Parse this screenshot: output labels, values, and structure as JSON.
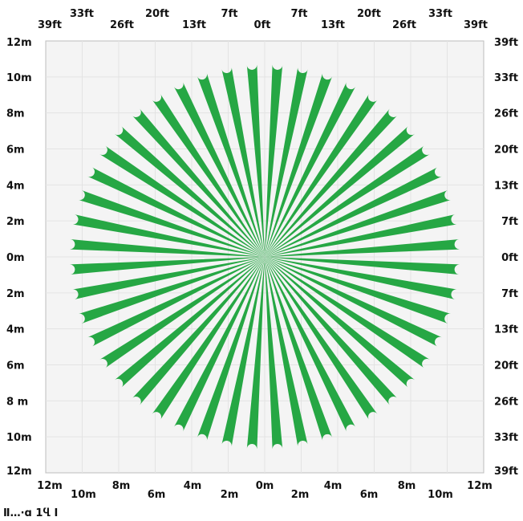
{
  "colors": {
    "ray": "#26a744",
    "plot_bg": "#f4f4f4",
    "grid": "#e3e3e3",
    "frame": "#bdbdbd",
    "text": "#111111"
  },
  "plot": {
    "ray_count": 48,
    "ray_radius_m": 10.7,
    "axis_range_m": [
      -12,
      12
    ]
  },
  "labels": {
    "top_feet": [
      "39ft",
      "33ft",
      "26ft",
      "20ft",
      "13ft",
      "7ft",
      "0ft",
      "7ft",
      "13ft",
      "20ft",
      "26ft",
      "33ft",
      "39ft"
    ],
    "bottom_meters": [
      "12m",
      "10m",
      "8m",
      "6m",
      "4m",
      "2m",
      "0m",
      "2m",
      "4m",
      "6m",
      "8m",
      "10m",
      "12m"
    ],
    "left_meters": [
      "12m",
      "10m",
      "8m",
      "6m",
      "4m",
      "2m",
      "0m",
      "2m",
      "4m",
      "6m",
      "8 m",
      "10m",
      "12m"
    ],
    "right_feet": [
      "39ft",
      "33ft",
      "26ft",
      "20ft",
      "13ft",
      "7ft",
      "0ft",
      "7ft",
      "13ft",
      "20ft",
      "26ft",
      "33ft",
      "39ft"
    ]
  },
  "caption": "Ⅱ…·ɑ 1Ⴁ Ⅰ"
}
